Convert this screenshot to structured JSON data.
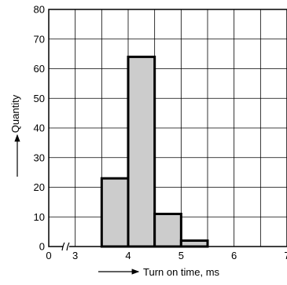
{
  "chart_data": {
    "type": "bar",
    "title": "",
    "xlabel": "Turn on time, ms",
    "ylabel": "Quantity",
    "xlim": [
      2.5,
      7
    ],
    "ylim": [
      0,
      80
    ],
    "x_axis_break": true,
    "grid": true,
    "x_tick_values": [
      3,
      4,
      5,
      6,
      7
    ],
    "x_tick_labels": [
      "0",
      "3",
      "4",
      "5",
      "6",
      "7"
    ],
    "y_tick_labels": [
      "0",
      "10",
      "20",
      "30",
      "40",
      "50",
      "60",
      "70",
      "80"
    ],
    "bin_width": 0.5,
    "bins": [
      {
        "x_start": 3.5,
        "x_end": 4.0,
        "value": 23
      },
      {
        "x_start": 4.0,
        "x_end": 4.5,
        "value": 64
      },
      {
        "x_start": 4.5,
        "x_end": 5.0,
        "value": 11
      },
      {
        "x_start": 5.0,
        "x_end": 5.5,
        "value": 2
      }
    ],
    "bar_fill": "#cccccc",
    "bar_stroke": "#000000"
  }
}
